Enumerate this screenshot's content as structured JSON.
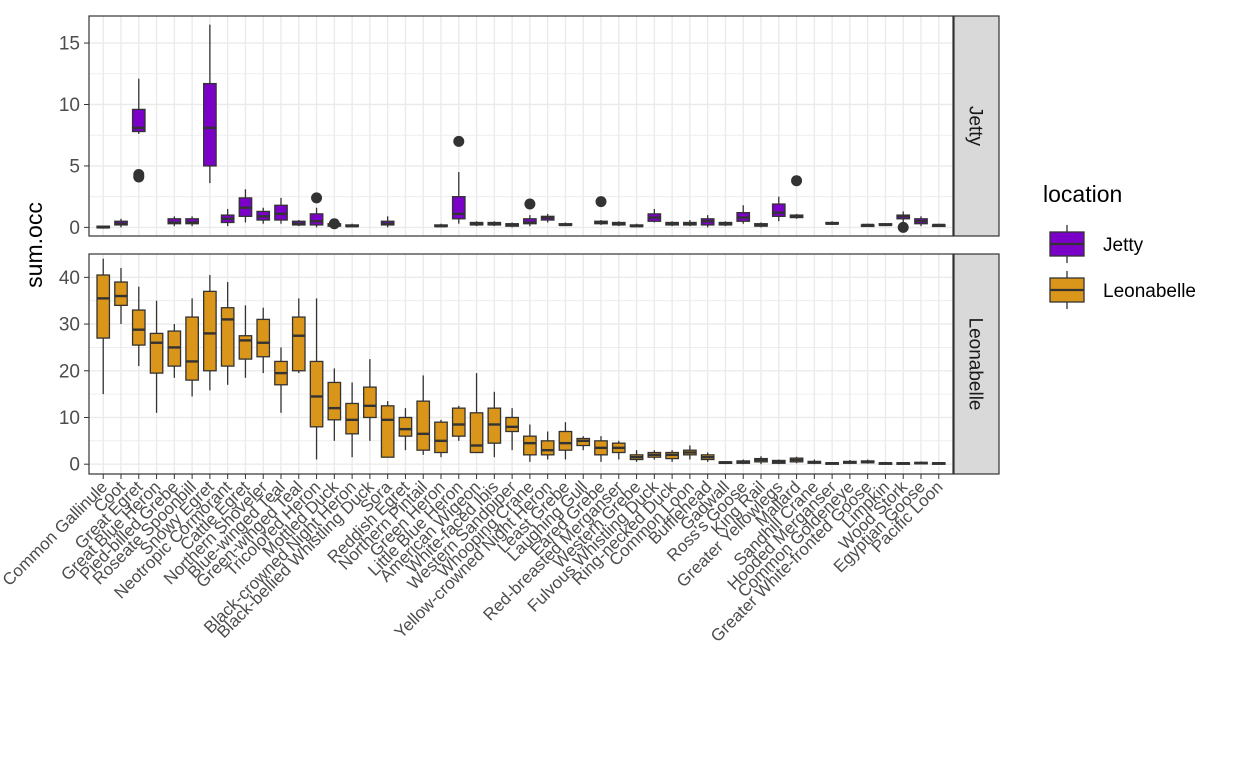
{
  "chart_data": {
    "type": "boxplot",
    "ylabel": "sum.occ",
    "xlabel": "",
    "facets": [
      "Jetty",
      "Leonabelle"
    ],
    "panels": [
      {
        "facet": "Jetty",
        "ylim": [
          -0.7,
          17.2
        ],
        "yticks": [
          0,
          5,
          10,
          15
        ]
      },
      {
        "facet": "Leonabelle",
        "ylim": [
          -2.1,
          45.0
        ],
        "yticks": [
          0,
          10,
          20,
          30,
          40
        ]
      }
    ],
    "legend": {
      "title": "location",
      "position": "right",
      "entries": [
        {
          "name": "Jetty",
          "color": "#7b00c8"
        },
        {
          "name": "Leonabelle",
          "color": "#d9961a"
        }
      ]
    },
    "categories": [
      "Common Gallinule",
      "Coot",
      "Great Egret",
      "Great Blue Heron",
      "Pied-billed Grebe",
      "Roseate Spoonbill",
      "Snowy Egret",
      "Neotropic Cormorant",
      "Cattle Egret",
      "Northern Shoveler",
      "Blue-winged Teal",
      "Green-winged Teal",
      "Tricolored Heron",
      "Mottled Duck",
      "Black-crowned Night Heron",
      "Black-bellied Whistling Duck",
      "Sora",
      "Reddish Egret",
      "Northern Pintail",
      "Green Heron",
      "Little Blue Heron",
      "American Wigeon",
      "White-faced Ibis",
      "Western Sandpiper",
      "Whooping Crane",
      "Yellow-crowned Night Heron",
      "Least Grebe",
      "Laughing Gull",
      "Eared Grebe",
      "Red-breasted Merganser",
      "Western Grebe",
      "Fulvous Whistling Duck",
      "Ring-necked Duck",
      "Common Loon",
      "Bufflehead",
      "Gadwall",
      "Ross's Goose",
      "King Rail",
      "Greater Yellowlegs",
      "Mallard",
      "Sandhill Crane",
      "Hooded Merganser",
      "Common Goldeneye",
      "Greater White-fronted Goose",
      "Limpkin",
      "Wood Stork",
      "Egyptian Goose",
      "Pacific Loon"
    ],
    "series": [
      {
        "name": "Jetty",
        "boxes": [
          [
            -0.1,
            0,
            0,
            0.1,
            0.1
          ],
          [
            0,
            0.2,
            0.3,
            0.5,
            0.7
          ],
          [
            7.6,
            7.8,
            8.1,
            9.6,
            12.1
          ],
          null,
          [
            0.1,
            0.3,
            0.4,
            0.7,
            0.9
          ],
          [
            0.1,
            0.3,
            0.4,
            0.7,
            0.9
          ],
          [
            3.6,
            5.0,
            8.1,
            11.7,
            16.5
          ],
          [
            0.1,
            0.4,
            0.7,
            1.0,
            1.5
          ],
          [
            0.4,
            0.9,
            1.6,
            2.4,
            3.1
          ],
          [
            0.3,
            0.6,
            0.9,
            1.3,
            1.6
          ],
          [
            0.3,
            0.6,
            1.1,
            1.8,
            2.4
          ],
          [
            0.1,
            0.2,
            0.3,
            0.5,
            0.6
          ],
          [
            0,
            0.2,
            0.5,
            1.1,
            1.6
          ],
          [
            0,
            0.1,
            0.2,
            0.3,
            0.4
          ],
          [
            0,
            0.1,
            0.1,
            0.2,
            0.3
          ],
          null,
          [
            0,
            0.2,
            0.3,
            0.5,
            0.9
          ],
          null,
          null,
          [
            0,
            0.1,
            0.1,
            0.2,
            0.3
          ],
          [
            0.3,
            0.7,
            1.1,
            2.5,
            4.5
          ],
          [
            0.1,
            0.2,
            0.3,
            0.4,
            0.5
          ],
          [
            0.1,
            0.2,
            0.3,
            0.4,
            0.5
          ],
          [
            0,
            0.1,
            0.2,
            0.3,
            0.4
          ],
          [
            0.1,
            0.3,
            0.4,
            0.7,
            1.0
          ],
          [
            0.4,
            0.6,
            0.8,
            0.9,
            1.1
          ],
          [
            0.1,
            0.2,
            0.2,
            0.3,
            0.4
          ],
          null,
          [
            0.2,
            0.3,
            0.4,
            0.5,
            0.6
          ],
          [
            0.1,
            0.2,
            0.3,
            0.4,
            0.5
          ],
          [
            0,
            0.1,
            0.1,
            0.2,
            0.3
          ],
          [
            0.4,
            0.5,
            0.8,
            1.1,
            1.5
          ],
          [
            0.1,
            0.2,
            0.3,
            0.4,
            0.5
          ],
          [
            0.1,
            0.2,
            0.3,
            0.4,
            0.6
          ],
          [
            0,
            0.2,
            0.5,
            0.7,
            1.0
          ],
          [
            0.1,
            0.2,
            0.3,
            0.4,
            0.5
          ],
          [
            0.3,
            0.5,
            0.8,
            1.2,
            1.8
          ],
          [
            0,
            0.1,
            0.2,
            0.3,
            0.4
          ],
          [
            0.5,
            0.9,
            1.2,
            1.9,
            2.5
          ],
          [
            0.7,
            0.8,
            0.9,
            1.0,
            1.1
          ],
          null,
          [
            0.2,
            0.3,
            0.3,
            0.4,
            0.5
          ],
          null,
          [
            0.1,
            0.1,
            0.2,
            0.2,
            0.3
          ],
          [
            0.1,
            0.2,
            0.2,
            0.3,
            0.3
          ],
          [
            0.4,
            0.7,
            0.9,
            1.0,
            1.3
          ],
          [
            0.1,
            0.3,
            0.5,
            0.7,
            0.9
          ],
          [
            0.1,
            0.1,
            0.2,
            0.2,
            0.3
          ]
        ],
        "outliers": [
          {
            "cat": 2,
            "values": [
              4.1,
              4.3
            ]
          },
          {
            "cat": 12,
            "values": [
              2.4
            ]
          },
          {
            "cat": 13,
            "values": [
              0.3
            ]
          },
          {
            "cat": 20,
            "values": [
              7.0
            ]
          },
          {
            "cat": 24,
            "values": [
              1.9
            ]
          },
          {
            "cat": 28,
            "values": [
              2.1
            ]
          },
          {
            "cat": 39,
            "values": [
              3.8
            ]
          },
          {
            "cat": 45,
            "values": [
              0
            ]
          }
        ]
      },
      {
        "name": "Leonabelle",
        "boxes": [
          [
            15,
            27,
            35.5,
            40.5,
            44
          ],
          [
            30,
            34,
            36,
            39,
            42
          ],
          [
            21,
            25.5,
            28.8,
            33,
            38
          ],
          [
            11,
            19.5,
            26,
            28,
            35
          ],
          [
            18.5,
            21,
            25,
            28.5,
            30
          ],
          [
            14.5,
            18,
            22,
            31.5,
            35.5
          ],
          [
            15.8,
            20,
            28,
            37,
            40.5
          ],
          [
            17,
            21,
            31,
            33.5,
            39
          ],
          [
            18.5,
            22.5,
            26.5,
            27.5,
            34
          ],
          [
            19.5,
            23,
            26,
            31,
            33.5
          ],
          [
            11,
            17,
            19.5,
            22,
            25
          ],
          [
            19.5,
            20,
            27.5,
            31.5,
            35.5
          ],
          [
            1,
            8,
            14.5,
            22,
            35.5
          ],
          [
            5,
            9.5,
            12,
            17.5,
            20.5
          ],
          [
            1.5,
            6.5,
            9.5,
            13,
            17.5
          ],
          [
            5,
            10,
            12.5,
            16.5,
            22.5
          ],
          [
            1.5,
            1.5,
            9.5,
            12.5,
            13.5
          ],
          [
            3,
            6,
            7.5,
            10,
            12
          ],
          [
            2,
            3,
            6.5,
            13.5,
            19
          ],
          [
            1.5,
            2.5,
            5,
            9,
            9.5
          ],
          [
            5,
            6,
            8.5,
            12,
            12.5
          ],
          [
            2.5,
            2.5,
            4,
            11,
            19.5
          ],
          [
            1.5,
            4.5,
            8.5,
            12,
            15.5
          ],
          [
            3,
            7,
            8,
            10,
            12
          ],
          [
            0.5,
            2,
            4.5,
            6,
            8.5
          ],
          [
            1,
            2,
            3,
            5,
            7
          ],
          [
            1,
            3,
            4.5,
            7,
            9
          ],
          [
            3,
            4,
            5,
            5.5,
            6
          ],
          [
            0.5,
            2,
            3.5,
            5,
            6
          ],
          [
            1,
            2.5,
            3.5,
            4.5,
            5
          ],
          [
            0.5,
            1,
            1.5,
            2,
            3
          ],
          [
            1,
            1.5,
            2,
            2.5,
            3
          ],
          [
            0.5,
            1.2,
            2,
            2.5,
            3
          ],
          [
            1,
            2,
            2.5,
            3,
            4
          ],
          [
            0.5,
            1,
            1.5,
            2,
            2.5
          ],
          [
            0,
            0.2,
            0.4,
            0.5,
            0.5
          ],
          [
            0,
            0.2,
            0.5,
            0.7,
            1
          ],
          [
            0,
            0.5,
            0.9,
            1.2,
            1.7
          ],
          [
            0,
            0.2,
            0.5,
            0.8,
            1
          ],
          [
            0.2,
            0.5,
            0.9,
            1.3,
            1.6
          ],
          [
            0,
            0.2,
            0.4,
            0.6,
            1
          ],
          [
            0,
            0.1,
            0.2,
            0.3,
            0.4
          ],
          [
            0,
            0.2,
            0.4,
            0.6,
            0.9
          ],
          [
            0.1,
            0.3,
            0.5,
            0.7,
            1.0
          ],
          [
            0,
            0.1,
            0.2,
            0.3,
            0.5
          ],
          [
            0,
            0.1,
            0.2,
            0.3,
            0.4
          ],
          [
            0,
            0.1,
            0.2,
            0.4,
            0.6
          ],
          [
            0,
            0.1,
            0.2,
            0.3,
            0.4
          ]
        ],
        "outliers": []
      }
    ]
  }
}
